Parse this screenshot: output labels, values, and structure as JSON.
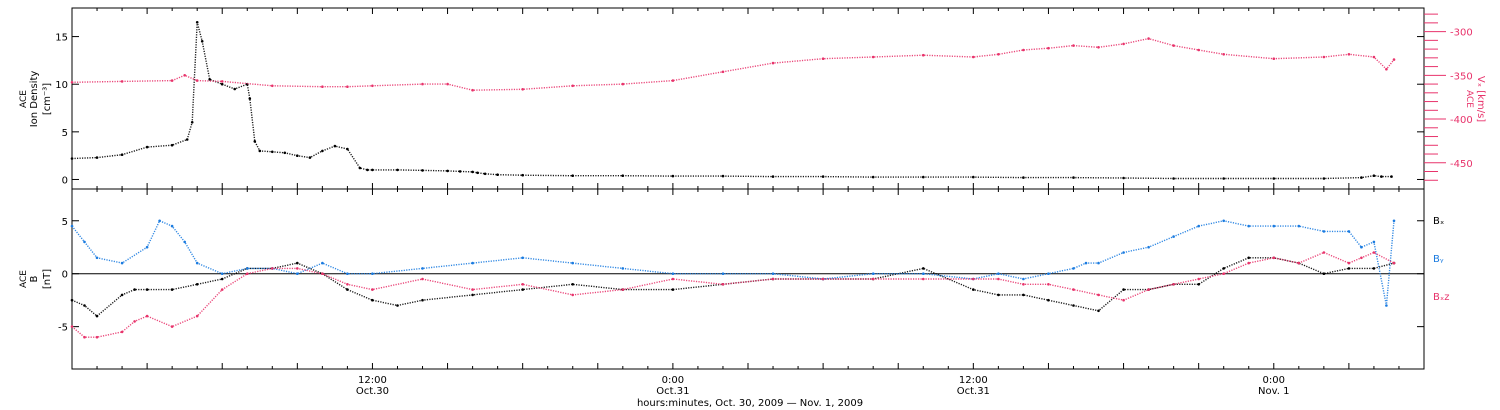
{
  "xlabel": "hours:minutes, Oct. 30, 2009 — Nov.  1, 2009",
  "colors": {
    "black": "#000000",
    "red": "#e8336b",
    "blue": "#1a7be0"
  },
  "x_ticks": [
    {
      "t": 12,
      "time": "12:00",
      "date": "Oct.30"
    },
    {
      "t": 24,
      "time": "0:00",
      "date": "Oct.31"
    },
    {
      "t": 36,
      "time": "12:00",
      "date": "Oct.31"
    },
    {
      "t": 48,
      "time": "0:00",
      "date": "Nov. 1"
    }
  ],
  "chart_data": [
    {
      "type": "scatter",
      "panel": "top",
      "x_unit": "hours since Oct. 30, 2009 00:00",
      "xlim": [
        0,
        54
      ],
      "ylabel": {
        "line1": "ACE",
        "line2": "Ion Density",
        "line3": "[cm⁻³]"
      },
      "ylim": [
        -1,
        18
      ],
      "yticks": [
        0,
        5,
        10,
        15
      ],
      "y2label": {
        "line1": "ACE",
        "line2": "Vₓ [km/s]"
      },
      "y2lim": [
        -480,
        -273
      ],
      "y2ticks": [
        -300,
        -350,
        -400,
        -450
      ],
      "series": [
        {
          "key": "density",
          "color": "#000000",
          "axis": "left",
          "x": [
            0,
            1,
            2,
            3,
            4,
            4.6,
            4.8,
            5,
            5.2,
            5.5,
            6,
            6.5,
            7,
            7.1,
            7.3,
            7.5,
            8,
            8.5,
            9,
            9.5,
            10,
            10.5,
            11,
            11.5,
            11.8,
            12,
            13,
            14,
            15,
            15.5,
            16,
            16.2,
            16.5,
            17,
            18,
            20,
            22,
            24,
            26,
            28,
            30,
            32,
            34,
            36,
            38,
            40,
            42,
            44,
            46,
            48,
            50,
            51.5,
            52,
            52.3,
            52.7
          ],
          "y": [
            2.2,
            2.3,
            2.6,
            3.4,
            3.6,
            4.2,
            6.0,
            16.5,
            14.5,
            10.5,
            10.0,
            9.5,
            10.0,
            8.5,
            4.0,
            3.0,
            2.9,
            2.8,
            2.5,
            2.3,
            3.0,
            3.5,
            3.2,
            1.2,
            1.0,
            1.0,
            1.0,
            0.95,
            0.9,
            0.85,
            0.8,
            0.7,
            0.6,
            0.5,
            0.45,
            0.4,
            0.4,
            0.35,
            0.35,
            0.3,
            0.3,
            0.25,
            0.25,
            0.25,
            0.2,
            0.2,
            0.15,
            0.1,
            0.1,
            0.1,
            0.1,
            0.2,
            0.4,
            0.3,
            0.3
          ]
        },
        {
          "key": "vx",
          "color": "#e8336b",
          "axis": "right",
          "x": [
            0,
            2,
            4,
            4.5,
            5,
            6,
            8,
            10,
            11,
            12,
            14,
            15,
            16,
            18,
            20,
            22,
            24,
            26,
            28,
            30,
            32,
            34,
            36,
            37,
            38,
            39,
            40,
            41,
            42,
            43,
            44,
            45,
            46,
            48,
            50,
            51,
            52,
            52.5,
            52.8
          ],
          "y": [
            -358,
            -357,
            -356,
            -350,
            -356,
            -357,
            -362,
            -363,
            -363,
            -362,
            -360,
            -360,
            -367,
            -366,
            -362,
            -360,
            -356,
            -346,
            -336,
            -331,
            -329,
            -327,
            -329,
            -326,
            -321,
            -319,
            -316,
            -318,
            -314,
            -308,
            -316,
            -321,
            -326,
            -331,
            -329,
            -326,
            -329,
            -343,
            -332
          ]
        }
      ]
    },
    {
      "type": "scatter",
      "panel": "bottom",
      "x_unit": "hours since Oct. 30, 2009 00:00",
      "xlim": [
        0,
        54
      ],
      "ylabel": {
        "line1": "ACE",
        "line2": "B",
        "line3": "[nT]"
      },
      "ylim": [
        -9,
        8
      ],
      "yticks": [
        -5,
        0,
        5
      ],
      "zero_line": true,
      "series": [
        {
          "name": "Bₓ",
          "color": "#000000",
          "x": [
            0,
            0.5,
            1,
            2,
            2.5,
            3,
            4,
            5,
            6,
            7,
            8,
            9,
            10,
            11,
            12,
            13,
            14,
            16,
            18,
            20,
            22,
            24,
            26,
            28,
            30,
            32,
            34,
            36,
            37,
            38,
            39,
            40,
            41,
            42,
            43,
            44,
            45,
            46,
            47,
            48,
            49,
            50,
            51,
            52,
            52.8
          ],
          "y": [
            -2.5,
            -3,
            -4,
            -2,
            -1.5,
            -1.5,
            -1.5,
            -1.0,
            -0.5,
            0.5,
            0.5,
            1.0,
            0.0,
            -1.5,
            -2.5,
            -3.0,
            -2.5,
            -2.0,
            -1.5,
            -1.0,
            -1.5,
            -1.5,
            -1.0,
            -0.5,
            -0.5,
            -0.5,
            0.5,
            -1.5,
            -2.0,
            -2.0,
            -2.5,
            -3.0,
            -3.5,
            -1.5,
            -1.5,
            -1.0,
            -1.0,
            0.5,
            1.5,
            1.5,
            1.0,
            0.0,
            0.5,
            0.5,
            1.0
          ]
        },
        {
          "name": "Bᵧ",
          "color": "#1a7be0",
          "x": [
            0,
            0.5,
            1,
            2,
            3,
            3.5,
            4,
            4.5,
            5,
            6,
            7,
            8,
            9,
            10,
            11,
            12,
            14,
            16,
            18,
            20,
            22,
            24,
            26,
            28,
            30,
            32,
            34,
            36,
            37,
            38,
            39,
            40,
            40.5,
            41,
            42,
            43,
            44,
            45,
            46,
            47,
            48,
            49,
            50,
            51,
            51.5,
            52,
            52.5,
            52.8
          ],
          "y": [
            4.5,
            3.0,
            1.5,
            1.0,
            2.5,
            5.0,
            4.5,
            3.0,
            1.0,
            0.0,
            0.5,
            0.5,
            0.0,
            1.0,
            0.0,
            0.0,
            0.5,
            1.0,
            1.5,
            1.0,
            0.5,
            0.0,
            0.0,
            0.0,
            -0.5,
            0.0,
            0.0,
            -0.5,
            0.0,
            -0.5,
            0.0,
            0.5,
            1.0,
            1.0,
            2.0,
            2.5,
            3.5,
            4.5,
            5.0,
            4.5,
            4.5,
            4.5,
            4.0,
            4.0,
            2.5,
            3.0,
            -3.0,
            5.0
          ]
        },
        {
          "name": "Bₓz",
          "color": "#e8336b",
          "x": [
            0,
            0.5,
            1,
            2,
            2.5,
            3,
            4,
            5,
            6,
            7,
            8,
            9,
            10,
            11,
            12,
            14,
            16,
            18,
            20,
            22,
            24,
            26,
            28,
            30,
            32,
            34,
            36,
            37,
            38,
            39,
            40,
            41,
            42,
            43,
            44,
            45,
            46,
            47,
            48,
            49,
            50,
            51,
            51.5,
            52,
            52.8
          ],
          "y": [
            -5.0,
            -6.0,
            -6.0,
            -5.5,
            -4.5,
            -4.0,
            -5.0,
            -4.0,
            -1.5,
            0.0,
            0.5,
            0.5,
            0.0,
            -1.0,
            -1.5,
            -0.5,
            -1.5,
            -1.0,
            -2.0,
            -1.5,
            -0.5,
            -1.0,
            -0.5,
            -0.5,
            -0.5,
            -0.5,
            -0.5,
            -0.5,
            -1.0,
            -1.0,
            -1.5,
            -2.0,
            -2.5,
            -1.5,
            -1.0,
            -0.5,
            0.0,
            1.0,
            1.5,
            1.0,
            2.0,
            1.0,
            1.5,
            2.0,
            1.0
          ]
        }
      ]
    }
  ]
}
